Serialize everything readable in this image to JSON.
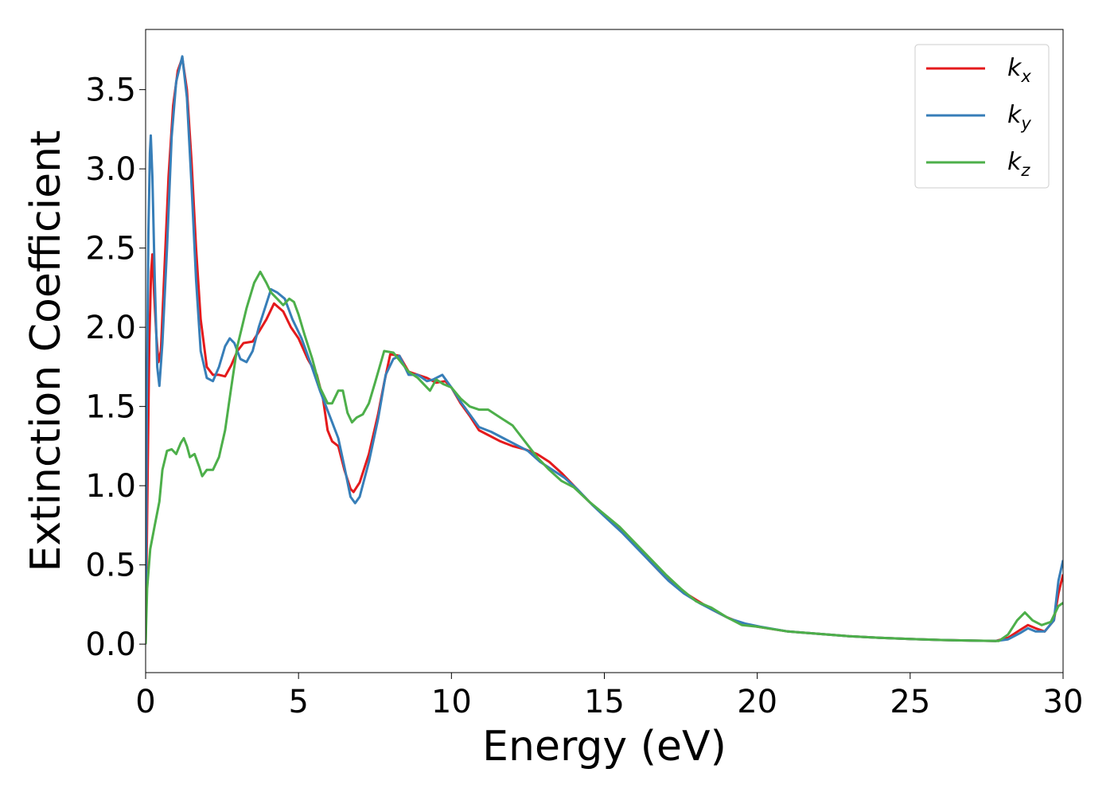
{
  "chart_data": {
    "type": "line",
    "xlabel": "Energy (eV)",
    "ylabel": "Extinction Coefficient",
    "xlim": [
      0,
      30
    ],
    "ylim": [
      -0.18,
      3.88
    ],
    "xticks": [
      0,
      5,
      10,
      15,
      20,
      25,
      30
    ],
    "xtick_labels": [
      "0",
      "5",
      "10",
      "15",
      "20",
      "25",
      "30"
    ],
    "yticks": [
      0.0,
      0.5,
      1.0,
      1.5,
      2.0,
      2.5,
      3.0,
      3.5
    ],
    "ytick_labels": [
      "0.0",
      "0.5",
      "1.0",
      "1.5",
      "2.0",
      "2.5",
      "3.0",
      "3.5"
    ],
    "grid": false,
    "legend_position": "top-right",
    "series": [
      {
        "name": "k",
        "subscript": "x",
        "color": "#e41a1c",
        "points": [
          [
            0,
            0
          ],
          [
            0.05,
            0.8
          ],
          [
            0.12,
            1.9
          ],
          [
            0.18,
            2.35
          ],
          [
            0.22,
            2.46
          ],
          [
            0.28,
            2.2
          ],
          [
            0.35,
            1.95
          ],
          [
            0.42,
            1.78
          ],
          [
            0.5,
            1.85
          ],
          [
            0.6,
            2.3
          ],
          [
            0.75,
            2.95
          ],
          [
            0.9,
            3.4
          ],
          [
            1.05,
            3.62
          ],
          [
            1.2,
            3.7
          ],
          [
            1.35,
            3.5
          ],
          [
            1.5,
            3.05
          ],
          [
            1.65,
            2.5
          ],
          [
            1.8,
            2.05
          ],
          [
            2.0,
            1.75
          ],
          [
            2.2,
            1.7
          ],
          [
            2.4,
            1.7
          ],
          [
            2.6,
            1.69
          ],
          [
            2.8,
            1.76
          ],
          [
            3.0,
            1.85
          ],
          [
            3.2,
            1.9
          ],
          [
            3.5,
            1.91
          ],
          [
            3.7,
            1.97
          ],
          [
            3.95,
            2.05
          ],
          [
            4.2,
            2.15
          ],
          [
            4.5,
            2.1
          ],
          [
            4.75,
            2.0
          ],
          [
            5.0,
            1.93
          ],
          [
            5.3,
            1.8
          ],
          [
            5.6,
            1.7
          ],
          [
            5.8,
            1.55
          ],
          [
            5.95,
            1.35
          ],
          [
            6.1,
            1.28
          ],
          [
            6.3,
            1.25
          ],
          [
            6.5,
            1.1
          ],
          [
            6.7,
            0.98
          ],
          [
            6.8,
            0.96
          ],
          [
            7.0,
            1.02
          ],
          [
            7.3,
            1.2
          ],
          [
            7.6,
            1.45
          ],
          [
            7.8,
            1.65
          ],
          [
            8.0,
            1.83
          ],
          [
            8.3,
            1.82
          ],
          [
            8.6,
            1.72
          ],
          [
            8.9,
            1.7
          ],
          [
            9.2,
            1.68
          ],
          [
            9.5,
            1.65
          ],
          [
            9.8,
            1.66
          ],
          [
            10.0,
            1.62
          ],
          [
            10.3,
            1.52
          ],
          [
            10.6,
            1.44
          ],
          [
            10.9,
            1.35
          ],
          [
            11.2,
            1.32
          ],
          [
            11.6,
            1.28
          ],
          [
            12.0,
            1.25
          ],
          [
            12.4,
            1.23
          ],
          [
            12.8,
            1.2
          ],
          [
            13.2,
            1.15
          ],
          [
            13.6,
            1.08
          ],
          [
            14.0,
            1.0
          ],
          [
            14.5,
            0.9
          ],
          [
            15.0,
            0.81
          ],
          [
            15.5,
            0.72
          ],
          [
            16.0,
            0.63
          ],
          [
            16.5,
            0.52
          ],
          [
            17.0,
            0.42
          ],
          [
            17.5,
            0.34
          ],
          [
            18.0,
            0.28
          ],
          [
            18.5,
            0.22
          ],
          [
            19.0,
            0.17
          ],
          [
            19.5,
            0.13
          ],
          [
            20.0,
            0.11
          ],
          [
            21,
            0.08
          ],
          [
            22,
            0.065
          ],
          [
            23,
            0.05
          ],
          [
            24,
            0.04
          ],
          [
            25,
            0.032
          ],
          [
            26,
            0.026
          ],
          [
            27,
            0.022
          ],
          [
            27.8,
            0.02
          ],
          [
            28.2,
            0.04
          ],
          [
            28.6,
            0.09
          ],
          [
            28.85,
            0.12
          ],
          [
            29.1,
            0.1
          ],
          [
            29.4,
            0.08
          ],
          [
            29.7,
            0.15
          ],
          [
            29.85,
            0.32
          ],
          [
            30,
            0.44
          ]
        ]
      },
      {
        "name": "k",
        "subscript": "y",
        "color": "#377eb8",
        "points": [
          [
            0,
            0
          ],
          [
            0.04,
            1.5
          ],
          [
            0.09,
            2.6
          ],
          [
            0.14,
            3.1
          ],
          [
            0.17,
            3.21
          ],
          [
            0.22,
            2.95
          ],
          [
            0.3,
            2.3
          ],
          [
            0.38,
            1.75
          ],
          [
            0.45,
            1.63
          ],
          [
            0.55,
            1.9
          ],
          [
            0.7,
            2.5
          ],
          [
            0.85,
            3.2
          ],
          [
            1.0,
            3.55
          ],
          [
            1.2,
            3.71
          ],
          [
            1.35,
            3.45
          ],
          [
            1.5,
            2.9
          ],
          [
            1.65,
            2.3
          ],
          [
            1.8,
            1.85
          ],
          [
            2.0,
            1.68
          ],
          [
            2.2,
            1.66
          ],
          [
            2.4,
            1.75
          ],
          [
            2.6,
            1.88
          ],
          [
            2.75,
            1.93
          ],
          [
            2.9,
            1.9
          ],
          [
            3.1,
            1.8
          ],
          [
            3.3,
            1.78
          ],
          [
            3.5,
            1.85
          ],
          [
            3.7,
            2.0
          ],
          [
            3.9,
            2.12
          ],
          [
            4.1,
            2.24
          ],
          [
            4.3,
            2.22
          ],
          [
            4.55,
            2.18
          ],
          [
            4.8,
            2.05
          ],
          [
            5.1,
            1.93
          ],
          [
            5.4,
            1.77
          ],
          [
            5.7,
            1.6
          ],
          [
            6.0,
            1.45
          ],
          [
            6.3,
            1.3
          ],
          [
            6.5,
            1.12
          ],
          [
            6.7,
            0.93
          ],
          [
            6.85,
            0.89
          ],
          [
            7.0,
            0.93
          ],
          [
            7.3,
            1.15
          ],
          [
            7.6,
            1.42
          ],
          [
            7.85,
            1.7
          ],
          [
            8.1,
            1.8
          ],
          [
            8.3,
            1.82
          ],
          [
            8.6,
            1.7
          ],
          [
            8.9,
            1.7
          ],
          [
            9.2,
            1.66
          ],
          [
            9.4,
            1.67
          ],
          [
            9.7,
            1.7
          ],
          [
            10.0,
            1.62
          ],
          [
            10.3,
            1.53
          ],
          [
            10.6,
            1.45
          ],
          [
            10.9,
            1.37
          ],
          [
            11.3,
            1.34
          ],
          [
            11.7,
            1.3
          ],
          [
            12.1,
            1.26
          ],
          [
            12.5,
            1.22
          ],
          [
            12.9,
            1.15
          ],
          [
            13.3,
            1.1
          ],
          [
            13.7,
            1.05
          ],
          [
            14.1,
            0.98
          ],
          [
            14.6,
            0.88
          ],
          [
            15.1,
            0.79
          ],
          [
            15.6,
            0.7
          ],
          [
            16.1,
            0.6
          ],
          [
            16.6,
            0.5
          ],
          [
            17.1,
            0.4
          ],
          [
            17.6,
            0.32
          ],
          [
            18.1,
            0.26
          ],
          [
            18.6,
            0.21
          ],
          [
            19.1,
            0.16
          ],
          [
            19.6,
            0.13
          ],
          [
            20.1,
            0.11
          ],
          [
            21,
            0.08
          ],
          [
            22,
            0.065
          ],
          [
            23,
            0.05
          ],
          [
            24,
            0.04
          ],
          [
            25,
            0.032
          ],
          [
            26,
            0.026
          ],
          [
            27,
            0.022
          ],
          [
            27.8,
            0.02
          ],
          [
            28.2,
            0.03
          ],
          [
            28.6,
            0.07
          ],
          [
            28.85,
            0.1
          ],
          [
            29.1,
            0.08
          ],
          [
            29.4,
            0.08
          ],
          [
            29.7,
            0.15
          ],
          [
            29.85,
            0.4
          ],
          [
            30,
            0.53
          ]
        ]
      },
      {
        "name": "k",
        "subscript": "z",
        "color": "#4daf4a",
        "points": [
          [
            0,
            0
          ],
          [
            0.05,
            0.35
          ],
          [
            0.15,
            0.6
          ],
          [
            0.3,
            0.75
          ],
          [
            0.45,
            0.9
          ],
          [
            0.55,
            1.1
          ],
          [
            0.7,
            1.22
          ],
          [
            0.85,
            1.23
          ],
          [
            1.0,
            1.2
          ],
          [
            1.15,
            1.27
          ],
          [
            1.25,
            1.3
          ],
          [
            1.35,
            1.25
          ],
          [
            1.45,
            1.18
          ],
          [
            1.6,
            1.2
          ],
          [
            1.75,
            1.12
          ],
          [
            1.85,
            1.06
          ],
          [
            2.0,
            1.1
          ],
          [
            2.2,
            1.1
          ],
          [
            2.4,
            1.18
          ],
          [
            2.6,
            1.35
          ],
          [
            2.8,
            1.62
          ],
          [
            3.0,
            1.88
          ],
          [
            3.3,
            2.12
          ],
          [
            3.55,
            2.28
          ],
          [
            3.75,
            2.35
          ],
          [
            3.95,
            2.28
          ],
          [
            4.1,
            2.22
          ],
          [
            4.3,
            2.18
          ],
          [
            4.5,
            2.14
          ],
          [
            4.7,
            2.18
          ],
          [
            4.85,
            2.16
          ],
          [
            5.0,
            2.08
          ],
          [
            5.2,
            1.95
          ],
          [
            5.45,
            1.8
          ],
          [
            5.7,
            1.62
          ],
          [
            5.95,
            1.52
          ],
          [
            6.1,
            1.52
          ],
          [
            6.3,
            1.6
          ],
          [
            6.45,
            1.6
          ],
          [
            6.6,
            1.46
          ],
          [
            6.75,
            1.4
          ],
          [
            6.9,
            1.43
          ],
          [
            7.1,
            1.45
          ],
          [
            7.3,
            1.52
          ],
          [
            7.5,
            1.65
          ],
          [
            7.8,
            1.85
          ],
          [
            8.1,
            1.84
          ],
          [
            8.35,
            1.78
          ],
          [
            8.6,
            1.72
          ],
          [
            8.9,
            1.68
          ],
          [
            9.1,
            1.64
          ],
          [
            9.3,
            1.6
          ],
          [
            9.5,
            1.67
          ],
          [
            9.75,
            1.64
          ],
          [
            10.0,
            1.62
          ],
          [
            10.3,
            1.55
          ],
          [
            10.6,
            1.5
          ],
          [
            10.9,
            1.48
          ],
          [
            11.2,
            1.48
          ],
          [
            11.6,
            1.43
          ],
          [
            12.0,
            1.38
          ],
          [
            12.4,
            1.28
          ],
          [
            12.8,
            1.18
          ],
          [
            13.2,
            1.1
          ],
          [
            13.6,
            1.03
          ],
          [
            14.0,
            0.99
          ],
          [
            14.5,
            0.9
          ],
          [
            15.0,
            0.82
          ],
          [
            15.5,
            0.74
          ],
          [
            16.0,
            0.64
          ],
          [
            16.5,
            0.54
          ],
          [
            17.0,
            0.44
          ],
          [
            17.5,
            0.35
          ],
          [
            18.0,
            0.27
          ],
          [
            18.5,
            0.23
          ],
          [
            19.0,
            0.17
          ],
          [
            19.5,
            0.12
          ],
          [
            20.0,
            0.11
          ],
          [
            21,
            0.08
          ],
          [
            22,
            0.065
          ],
          [
            23,
            0.05
          ],
          [
            24,
            0.04
          ],
          [
            25,
            0.032
          ],
          [
            26,
            0.026
          ],
          [
            27,
            0.022
          ],
          [
            27.9,
            0.02
          ],
          [
            28.2,
            0.06
          ],
          [
            28.5,
            0.15
          ],
          [
            28.75,
            0.2
          ],
          [
            29.0,
            0.15
          ],
          [
            29.3,
            0.12
          ],
          [
            29.6,
            0.14
          ],
          [
            29.85,
            0.24
          ],
          [
            30,
            0.26
          ]
        ]
      }
    ]
  }
}
